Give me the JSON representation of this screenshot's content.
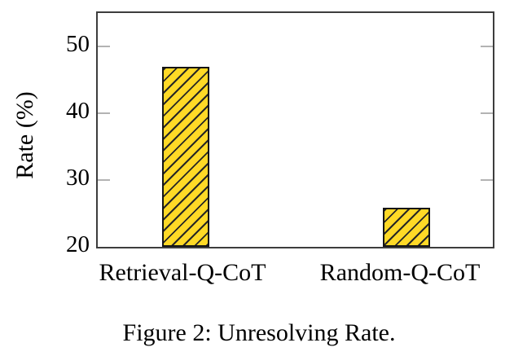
{
  "figure": {
    "caption": "Figure 2: Unresolving Rate."
  },
  "chart_data": {
    "type": "bar",
    "title": "",
    "categories": [
      "Retrieval-Q-CoT",
      "Random-Q-CoT"
    ],
    "values": [
      46.9,
      25.8
    ],
    "xlabel": "",
    "ylabel": "Rate (%)",
    "yticks": [
      20,
      30,
      40,
      50
    ],
    "ylim": [
      20,
      55
    ],
    "grid": false,
    "legend": null,
    "bar_color": "#FFD926",
    "bar_border_color": "#141414",
    "hatch_color": "#262626",
    "hatch_style": "forward-diagonal",
    "axis_color": "#3d3d3d",
    "tick_color": "#b3b3b3"
  }
}
